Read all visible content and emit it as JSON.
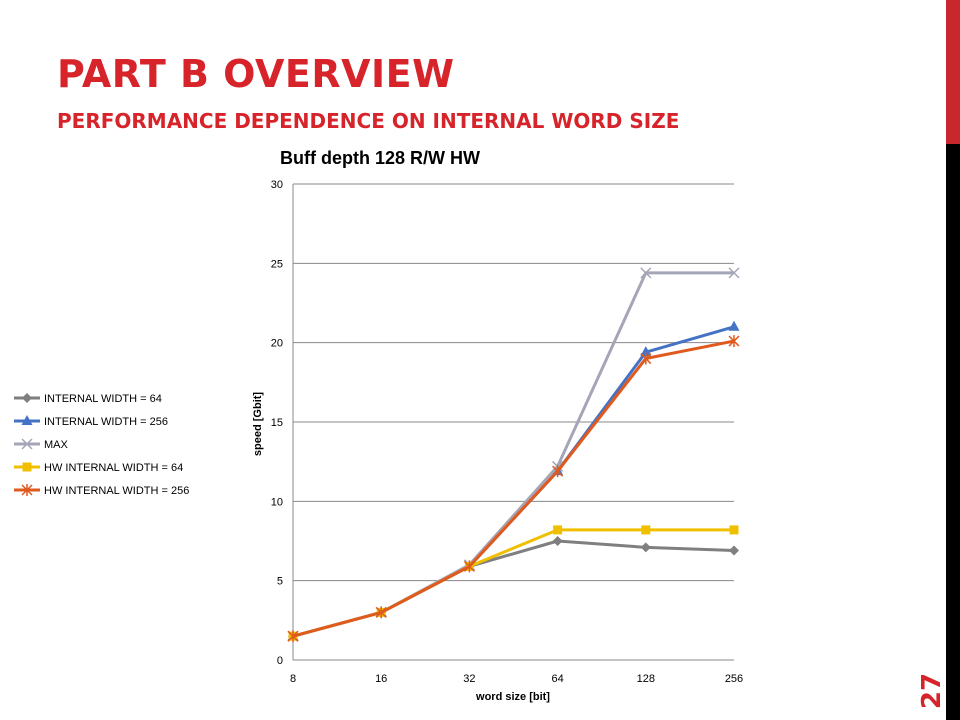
{
  "slide": {
    "title": "PART B OVERVIEW",
    "subtitle": "PERFORMANCE DEPENDENCE ON INTERNAL WORD SIZE",
    "page_number": "27",
    "colors": {
      "title": "#d7232a",
      "accent_bar": "#c8282d",
      "side_bar": "#000000"
    }
  },
  "chart_data": {
    "type": "line",
    "title": "Buff depth 128 R/W HW",
    "xlabel": "word size [bit]",
    "ylabel": "speed [Gbit]",
    "categories": [
      "8",
      "16",
      "32",
      "64",
      "128",
      "256"
    ],
    "ylim": [
      0,
      30
    ],
    "yticks": [
      0,
      5,
      10,
      15,
      20,
      25,
      30
    ],
    "grid": "horizontal",
    "legend_position": "left",
    "series": [
      {
        "name": "INTERNAL WIDTH = 64",
        "color": "#7f7f7f",
        "marker": "diamond",
        "values": [
          1.5,
          3.0,
          5.9,
          7.5,
          7.1,
          6.9
        ]
      },
      {
        "name": "INTERNAL WIDTH = 256",
        "color": "#4472c4",
        "marker": "triangle",
        "values": [
          1.5,
          3.0,
          5.9,
          11.9,
          19.4,
          21.0
        ]
      },
      {
        "name": "MAX",
        "color": "#a5a5b8",
        "marker": "x",
        "values": [
          1.5,
          3.0,
          6.0,
          12.2,
          24.4,
          24.4
        ]
      },
      {
        "name": "HW INTERNAL WIDTH = 64",
        "color": "#f0c000",
        "marker": "square",
        "values": [
          1.5,
          3.0,
          5.9,
          8.2,
          8.2,
          8.2
        ]
      },
      {
        "name": " HW INTERNAL WIDTH  = 256",
        "color": "#e05a1e",
        "marker": "star",
        "values": [
          1.5,
          3.0,
          5.9,
          11.9,
          19.0,
          20.1
        ]
      }
    ]
  }
}
